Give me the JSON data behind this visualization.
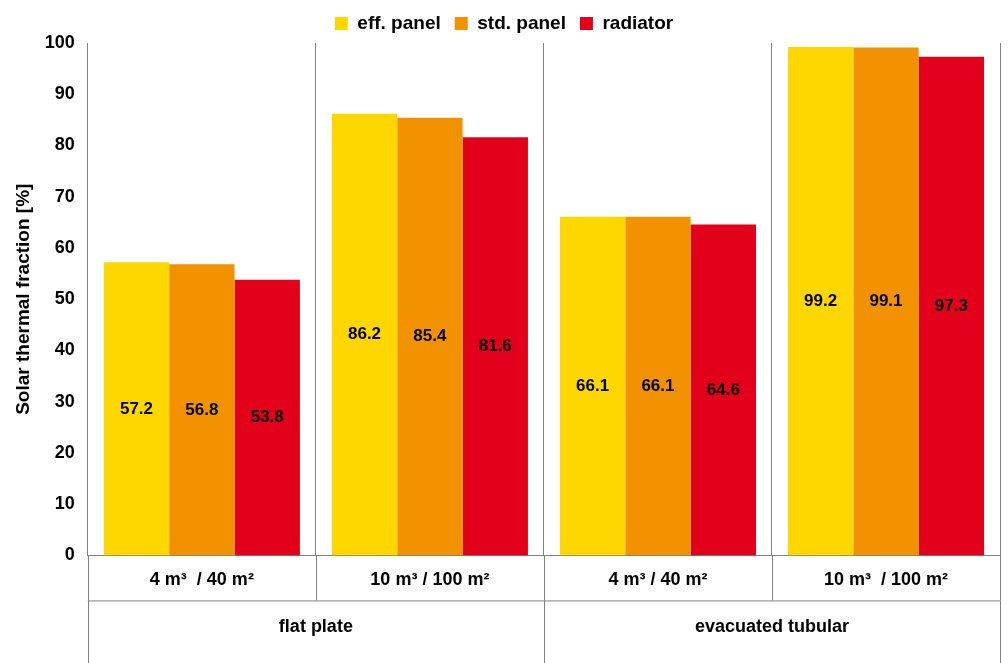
{
  "chart_data": {
    "type": "bar",
    "ylabel": "Solar thermal fraction [%]",
    "categories": [
      "4 m³  / 40 m²",
      "10 m³ / 100 m²",
      "4 m³ / 40 m²",
      "10 m³  / 100 m²"
    ],
    "series": [
      {
        "name": "eff. panel",
        "color": "#ffd700",
        "values": [
          57.2,
          86.2,
          66.1,
          99.2
        ]
      },
      {
        "name": "std. panel",
        "color": "#f39200",
        "values": [
          56.8,
          85.4,
          66.1,
          99.1
        ]
      },
      {
        "name": "radiator",
        "color": "#e2001a",
        "values": [
          53.8,
          81.6,
          64.6,
          97.3
        ]
      }
    ],
    "ylim": [
      0,
      100
    ],
    "yticks": [
      0,
      10,
      20,
      30,
      40,
      50,
      60,
      70,
      80,
      90,
      100
    ],
    "grid": "x",
    "legend": "top",
    "data_labels": true,
    "annotations": [
      "flat plate",
      "evacuated tubular"
    ]
  }
}
